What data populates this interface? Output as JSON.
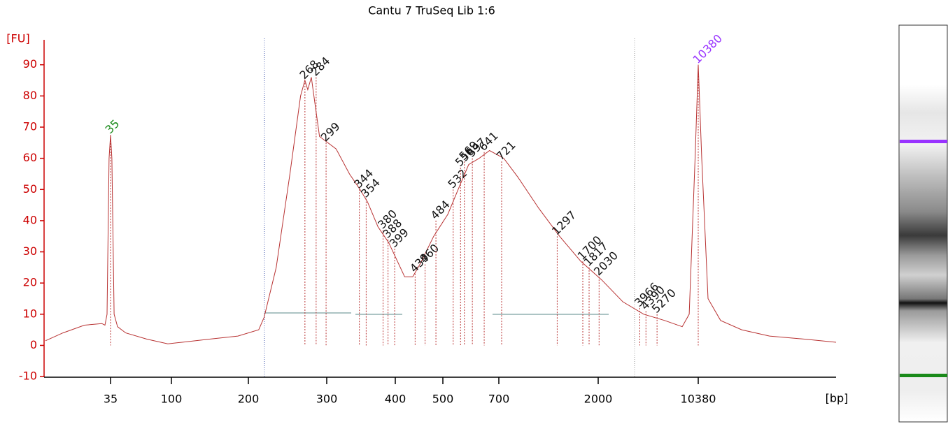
{
  "chart_data": {
    "type": "line",
    "title": "Cantu 7 TruSeq Lib 1:6",
    "ylabel": "[FU]",
    "xlabel": "[bp]",
    "ylim": [
      -10.2,
      98
    ],
    "yticks": [
      -10,
      0,
      10,
      20,
      30,
      40,
      50,
      60,
      70,
      80,
      90
    ],
    "xlim": [
      11,
      100000
    ],
    "xticks": [
      35,
      100,
      200,
      300,
      400,
      500,
      700,
      2000,
      10380
    ],
    "axis_color": "#cc0000",
    "trace": {
      "color": "#b83232",
      "x": [
        11,
        15,
        22,
        30,
        31.7,
        32.9,
        34.1,
        35,
        35.8,
        37.2,
        39.5,
        45.5,
        65.5,
        94,
        110,
        141,
        182,
        211,
        217,
        231,
        248,
        262,
        268,
        272,
        277,
        282,
        289,
        312,
        330,
        345,
        356,
        372,
        389,
        404,
        418,
        434,
        449,
        479,
        515,
        548,
        584,
        622,
        662,
        737,
        855,
        1067,
        1330,
        1663,
        2118,
        3000,
        4230,
        5970,
        7970,
        8950,
        9860,
        10380,
        10990,
        12200,
        15000,
        21200,
        33500,
        59700,
        100000
      ],
      "y": [
        1.5,
        4,
        6.5,
        7,
        6.5,
        10,
        60,
        67.5,
        60,
        10,
        6,
        4,
        2,
        0.5,
        1,
        2,
        3,
        5,
        9,
        25,
        55,
        80,
        85,
        82,
        86,
        78,
        67,
        63,
        55,
        50,
        46,
        38,
        33,
        27,
        22,
        22,
        26,
        35,
        42,
        50,
        58,
        60,
        62.5,
        60,
        54,
        44,
        35,
        27,
        21,
        14,
        10,
        8,
        6,
        10,
        60,
        90,
        60,
        15,
        8,
        5,
        3,
        2,
        1
      ]
    },
    "peaks": [
      {
        "bp": 35,
        "fu": 67.5,
        "color": "#1a8a1a"
      },
      {
        "bp": 268,
        "fu": 85,
        "color": "#111111"
      },
      {
        "bp": 284,
        "fu": 86,
        "color": "#111111"
      },
      {
        "bp": 299,
        "fu": 65,
        "color": "#111111"
      },
      {
        "bp": 344,
        "fu": 50,
        "color": "#111111"
      },
      {
        "bp": 354,
        "fu": 47,
        "color": "#111111"
      },
      {
        "bp": 380,
        "fu": 37,
        "color": "#111111"
      },
      {
        "bp": 388,
        "fu": 34,
        "color": "#111111"
      },
      {
        "bp": 399,
        "fu": 31,
        "color": "#111111"
      },
      {
        "bp": 439,
        "fu": 23,
        "color": "#111111"
      },
      {
        "bp": 460,
        "fu": 26,
        "color": "#111111"
      },
      {
        "bp": 484,
        "fu": 40,
        "color": "#111111"
      },
      {
        "bp": 532,
        "fu": 50,
        "color": "#111111"
      },
      {
        "bp": 556,
        "fu": 57,
        "color": "#111111"
      },
      {
        "bp": 569,
        "fu": 59,
        "color": "#111111"
      },
      {
        "bp": 597,
        "fu": 60,
        "color": "#111111"
      },
      {
        "bp": 641,
        "fu": 62,
        "color": "#111111"
      },
      {
        "bp": 721,
        "fu": 59,
        "color": "#111111"
      },
      {
        "bp": 1297,
        "fu": 35,
        "color": "#111111"
      },
      {
        "bp": 1700,
        "fu": 27,
        "color": "#111111"
      },
      {
        "bp": 1817,
        "fu": 25,
        "color": "#111111"
      },
      {
        "bp": 2030,
        "fu": 22,
        "color": "#111111"
      },
      {
        "bp": 3966,
        "fu": 12,
        "color": "#111111"
      },
      {
        "bp": 4390,
        "fu": 11,
        "color": "#111111"
      },
      {
        "bp": 5270,
        "fu": 10,
        "color": "#111111"
      },
      {
        "bp": 10380,
        "fu": 90,
        "color": "#9933ff"
      }
    ]
  }
}
